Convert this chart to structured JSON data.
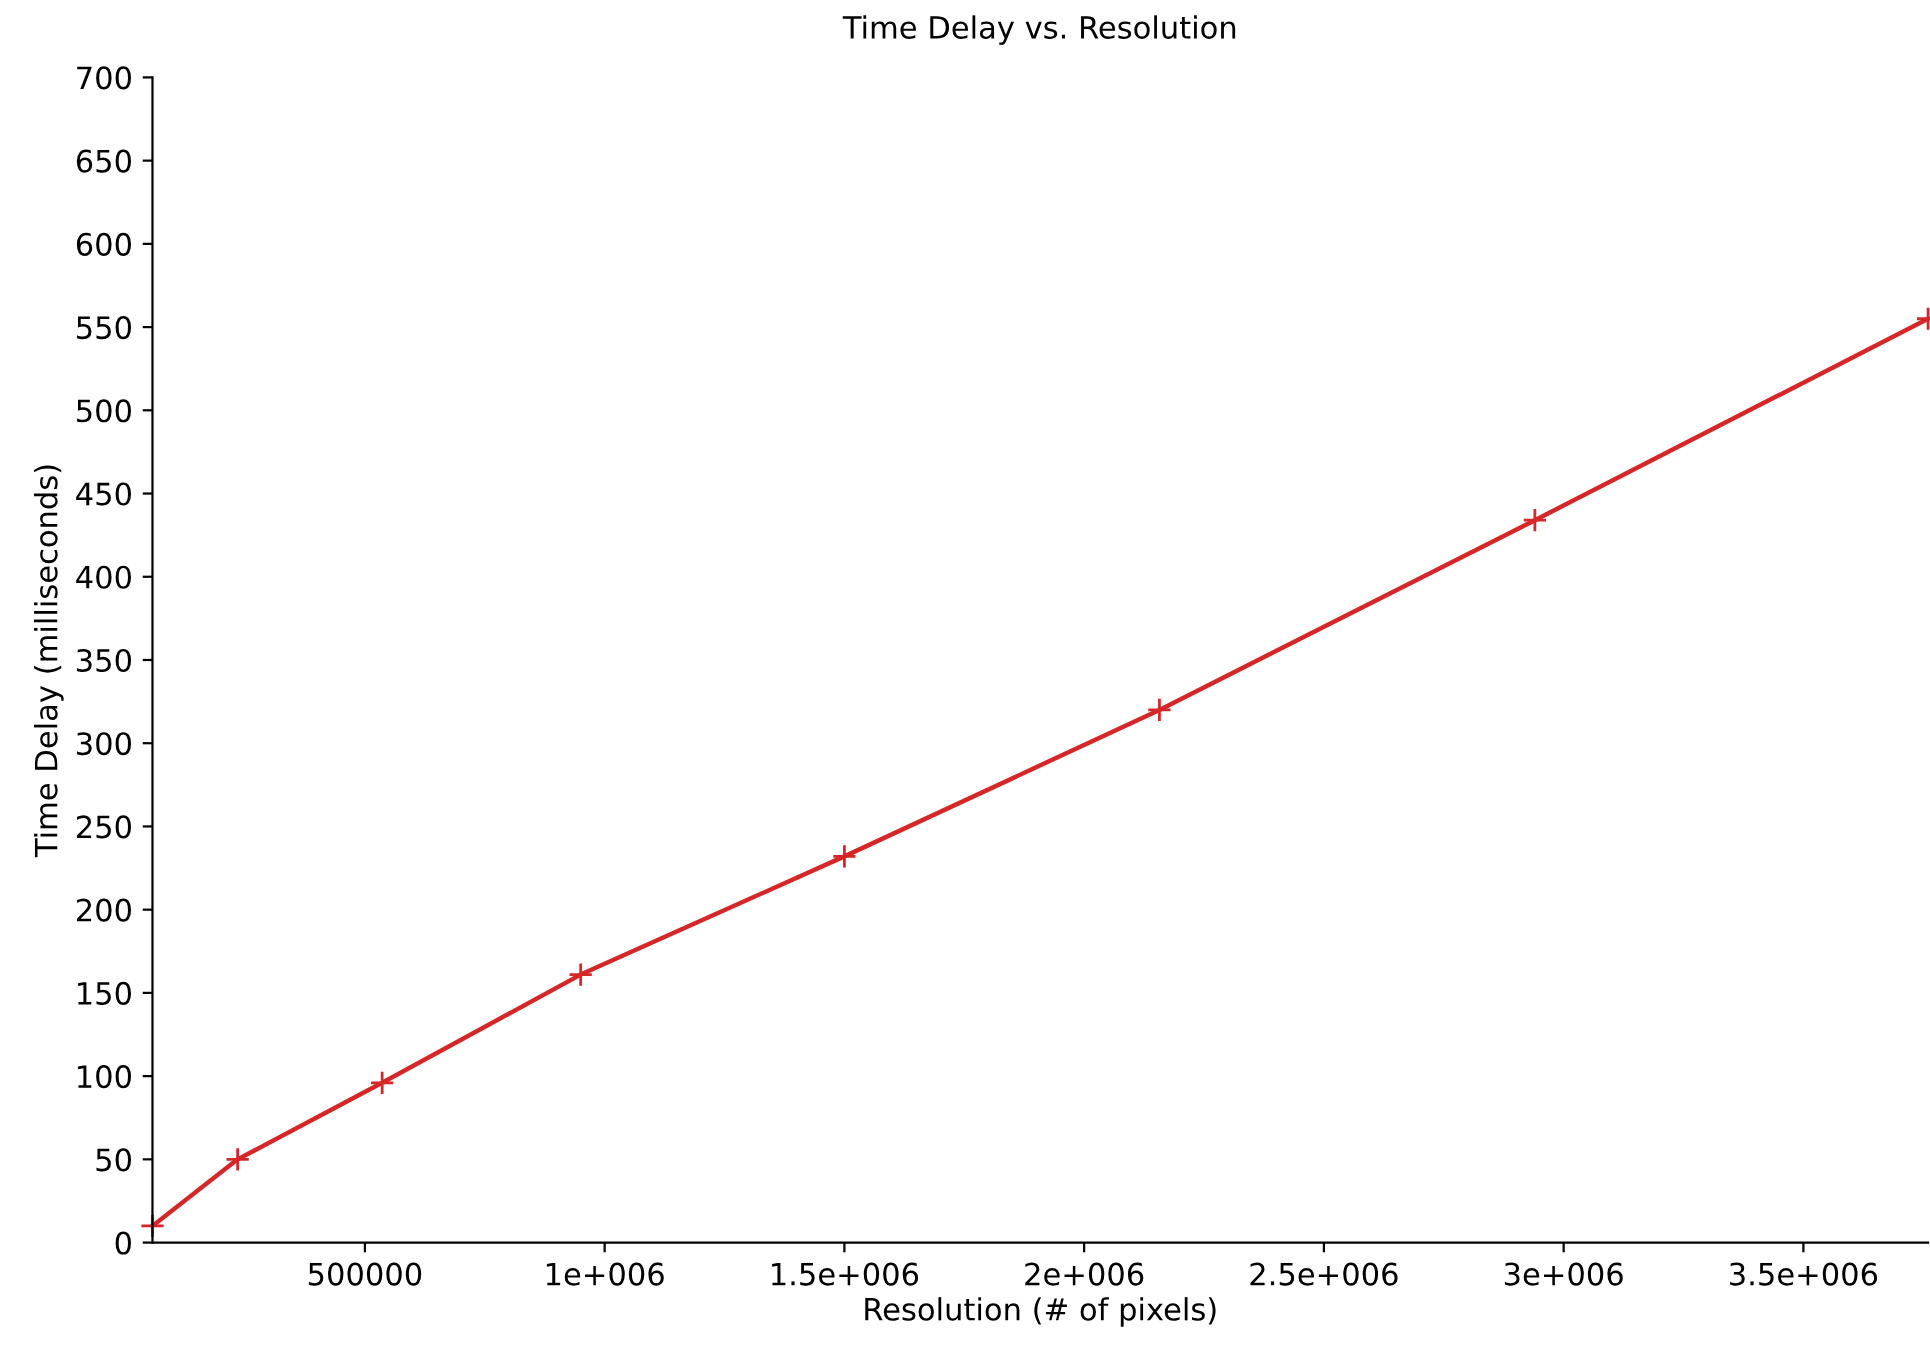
{
  "chart_data": {
    "type": "line",
    "title": "Time Delay vs. Resolution",
    "xlabel": "Resolution (# of pixels)",
    "ylabel": "Time Delay (milliseconds)",
    "x": [
      57000,
      234600,
      536000,
      950000,
      1500000,
      2157000,
      2940000,
      3760000
    ],
    "series": [
      {
        "color": "#d62728",
        "values": [
          10,
          50,
          96,
          161,
          232,
          320,
          434,
          555
        ]
      }
    ],
    "marker": "cross",
    "line_style": "solid",
    "xlim": [
      57000,
      3760000
    ],
    "ylim": [
      0,
      700
    ],
    "xticks": [
      {
        "value": 500000,
        "label": "500000"
      },
      {
        "value": 1000000,
        "label": "1e+006"
      },
      {
        "value": 1500000,
        "label": "1.5e+006"
      },
      {
        "value": 2000000,
        "label": "2e+006"
      },
      {
        "value": 2500000,
        "label": "2.5e+006"
      },
      {
        "value": 3000000,
        "label": "3e+006"
      },
      {
        "value": 3500000,
        "label": "3.5e+006"
      }
    ],
    "yticks": [
      0,
      50,
      100,
      150,
      200,
      250,
      300,
      350,
      400,
      450,
      500,
      550,
      600,
      650,
      700
    ]
  }
}
